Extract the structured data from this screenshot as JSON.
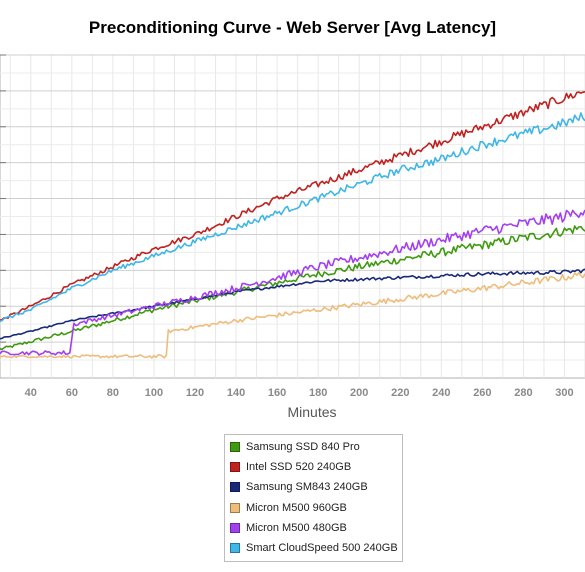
{
  "chart_data": {
    "type": "line",
    "title": "Preconditioning Curve - Web Server [Avg Latency]",
    "xlabel": "Minutes",
    "ylabel": "",
    "xlim": [
      25,
      310
    ],
    "ylim": [
      0,
      9
    ],
    "x_ticks": [
      40,
      60,
      80,
      100,
      120,
      140,
      160,
      180,
      200,
      220,
      240,
      260,
      280,
      300
    ],
    "y_ticks": [
      1,
      2,
      3,
      4,
      5,
      6,
      7,
      8,
      9
    ],
    "grid": true,
    "legend": "bottom-center",
    "series": [
      {
        "name": "Samsung SSD 840 Pro",
        "color": "#3f9a10",
        "noise": 0.1,
        "x": [
          25,
          60,
          100,
          140,
          180,
          220,
          260,
          280,
          300,
          310
        ],
        "values": [
          0.8,
          1.3,
          1.9,
          2.4,
          2.9,
          3.3,
          3.7,
          3.9,
          4.1,
          4.2
        ]
      },
      {
        "name": "Intel SSD 520 240GB",
        "color": "#c0221f",
        "noise": 0.1,
        "x": [
          25,
          40,
          60,
          80,
          100,
          120,
          140,
          160,
          180,
          200,
          220,
          240,
          260,
          280,
          300,
          310
        ],
        "values": [
          1.6,
          2.0,
          2.6,
          3.1,
          3.6,
          4.0,
          4.5,
          5.0,
          5.4,
          5.8,
          6.2,
          6.6,
          7.0,
          7.4,
          7.8,
          8.0
        ]
      },
      {
        "name": "Samsung SM843 240GB",
        "color": "#1a2a7a",
        "noise": 0.04,
        "x": [
          25,
          40,
          60,
          100,
          140,
          180,
          220,
          260,
          300,
          310
        ],
        "values": [
          1.1,
          1.3,
          1.6,
          2.0,
          2.4,
          2.7,
          2.8,
          2.9,
          2.95,
          3.0
        ]
      },
      {
        "name": "Micron M500 960GB",
        "color": "#eebd7c",
        "noise": 0.07,
        "x": [
          25,
          106,
          107,
          140,
          180,
          220,
          260,
          300,
          310
        ],
        "values": [
          0.6,
          0.6,
          1.3,
          1.6,
          1.9,
          2.2,
          2.5,
          2.8,
          2.9
        ]
      },
      {
        "name": "Micron M500 480GB",
        "color": "#a23ff0",
        "noise": 0.12,
        "x": [
          25,
          59,
          61,
          100,
          140,
          180,
          220,
          260,
          300,
          310
        ],
        "values": [
          0.7,
          0.7,
          1.5,
          2.0,
          2.5,
          3.1,
          3.6,
          4.1,
          4.5,
          4.7
        ]
      },
      {
        "name": "Smart CloudSpeed 500 240GB",
        "color": "#3fb6e8",
        "noise": 0.1,
        "x": [
          25,
          40,
          60,
          80,
          100,
          120,
          140,
          160,
          180,
          200,
          220,
          240,
          260,
          280,
          300,
          310
        ],
        "values": [
          1.6,
          1.9,
          2.5,
          3.0,
          3.4,
          3.8,
          4.2,
          4.6,
          5.0,
          5.4,
          5.8,
          6.1,
          6.5,
          6.8,
          7.1,
          7.3
        ]
      }
    ]
  }
}
